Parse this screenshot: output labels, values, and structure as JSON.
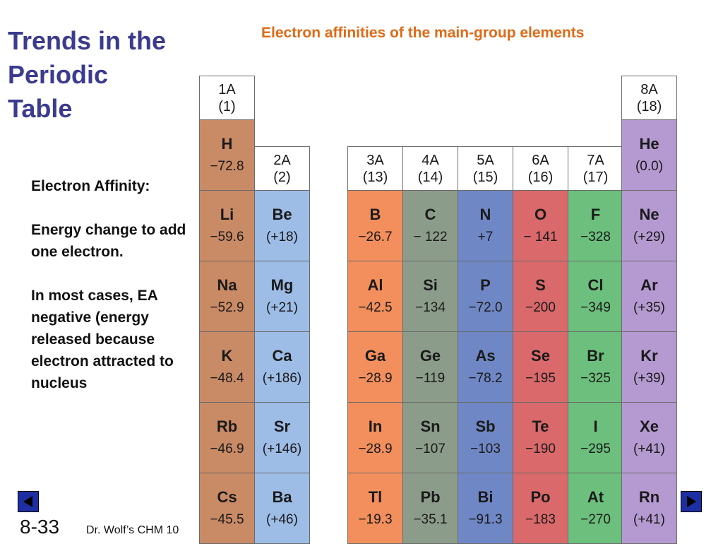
{
  "slide": {
    "title": "Trends in the\nPeriodic\nTable",
    "subtitle": "Electron affinities of the main-group elements",
    "body": [
      "Electron Affinity:",
      "Energy change to add one electron.",
      "In most cases, EA negative (energy released because electron attracted to nucleus"
    ],
    "slide_number": "8-33",
    "footer": "Dr. Wolf’s CHM 10"
  },
  "colors": {
    "title": "#3b3b8f",
    "subtitle": "#e06a17",
    "nav_button": "#1e2fa3",
    "group_1A": "#c98a66",
    "group_2A": "#9dbce6",
    "group_3A": "#f28f5c",
    "group_4A": "#8c9c8a",
    "group_5A": "#6f87c4",
    "group_6A": "#d9696b",
    "group_7A": "#6cbf7c",
    "group_8A": "#b59ad1"
  },
  "groups": [
    {
      "label": "1A",
      "number": "(1)"
    },
    {
      "label": "2A",
      "number": "(2)"
    },
    {
      "label": "3A",
      "number": "(13)"
    },
    {
      "label": "4A",
      "number": "(14)"
    },
    {
      "label": "5A",
      "number": "(15)"
    },
    {
      "label": "6A",
      "number": "(16)"
    },
    {
      "label": "7A",
      "number": "(17)"
    },
    {
      "label": "8A",
      "number": "(18)"
    }
  ],
  "elements": [
    {
      "symbol": "H",
      "value": "−72.8",
      "group": 0,
      "period": 1
    },
    {
      "symbol": "He",
      "value": "(0.0)",
      "group": 7,
      "period": 1
    },
    {
      "symbol": "Li",
      "value": "−59.6",
      "group": 0,
      "period": 2
    },
    {
      "symbol": "Be",
      "value": "(+18)",
      "group": 1,
      "period": 2
    },
    {
      "symbol": "B",
      "value": "−26.7",
      "group": 2,
      "period": 2
    },
    {
      "symbol": "C",
      "value": "− 122",
      "group": 3,
      "period": 2
    },
    {
      "symbol": "N",
      "value": "+7",
      "group": 4,
      "period": 2
    },
    {
      "symbol": "O",
      "value": "− 141",
      "group": 5,
      "period": 2
    },
    {
      "symbol": "F",
      "value": "−328",
      "group": 6,
      "period": 2
    },
    {
      "symbol": "Ne",
      "value": "(+29)",
      "group": 7,
      "period": 2
    },
    {
      "symbol": "Na",
      "value": "−52.9",
      "group": 0,
      "period": 3
    },
    {
      "symbol": "Mg",
      "value": "(+21)",
      "group": 1,
      "period": 3
    },
    {
      "symbol": "Al",
      "value": "−42.5",
      "group": 2,
      "period": 3
    },
    {
      "symbol": "Si",
      "value": "−134",
      "group": 3,
      "period": 3
    },
    {
      "symbol": "P",
      "value": "−72.0",
      "group": 4,
      "period": 3
    },
    {
      "symbol": "S",
      "value": "−200",
      "group": 5,
      "period": 3
    },
    {
      "symbol": "Cl",
      "value": "−349",
      "group": 6,
      "period": 3
    },
    {
      "symbol": "Ar",
      "value": "(+35)",
      "group": 7,
      "period": 3
    },
    {
      "symbol": "K",
      "value": "−48.4",
      "group": 0,
      "period": 4
    },
    {
      "symbol": "Ca",
      "value": "(+186)",
      "group": 1,
      "period": 4
    },
    {
      "symbol": "Ga",
      "value": "−28.9",
      "group": 2,
      "period": 4
    },
    {
      "symbol": "Ge",
      "value": "−119",
      "group": 3,
      "period": 4
    },
    {
      "symbol": "As",
      "value": "−78.2",
      "group": 4,
      "period": 4
    },
    {
      "symbol": "Se",
      "value": "−195",
      "group": 5,
      "period": 4
    },
    {
      "symbol": "Br",
      "value": "−325",
      "group": 6,
      "period": 4
    },
    {
      "symbol": "Kr",
      "value": "(+39)",
      "group": 7,
      "period": 4
    },
    {
      "symbol": "Rb",
      "value": "−46.9",
      "group": 0,
      "period": 5
    },
    {
      "symbol": "Sr",
      "value": "(+146)",
      "group": 1,
      "period": 5
    },
    {
      "symbol": "In",
      "value": "−28.9",
      "group": 2,
      "period": 5
    },
    {
      "symbol": "Sn",
      "value": "−107",
      "group": 3,
      "period": 5
    },
    {
      "symbol": "Sb",
      "value": "−103",
      "group": 4,
      "period": 5
    },
    {
      "symbol": "Te",
      "value": "−190",
      "group": 5,
      "period": 5
    },
    {
      "symbol": "I",
      "value": "−295",
      "group": 6,
      "period": 5
    },
    {
      "symbol": "Xe",
      "value": "(+41)",
      "group": 7,
      "period": 5
    },
    {
      "symbol": "Cs",
      "value": "−45.5",
      "group": 0,
      "period": 6
    },
    {
      "symbol": "Ba",
      "value": "(+46)",
      "group": 1,
      "period": 6
    },
    {
      "symbol": "Tl",
      "value": "−19.3",
      "group": 2,
      "period": 6
    },
    {
      "symbol": "Pb",
      "value": "−35.1",
      "group": 3,
      "period": 6
    },
    {
      "symbol": "Bi",
      "value": "−91.3",
      "group": 4,
      "period": 6
    },
    {
      "symbol": "Po",
      "value": "−183",
      "group": 5,
      "period": 6
    },
    {
      "symbol": "At",
      "value": "−270",
      "group": 6,
      "period": 6
    },
    {
      "symbol": "Rn",
      "value": "(+41)",
      "group": 7,
      "period": 6
    }
  ],
  "icons": {
    "prev": "triangle-left-icon",
    "next": "triangle-right-icon"
  }
}
